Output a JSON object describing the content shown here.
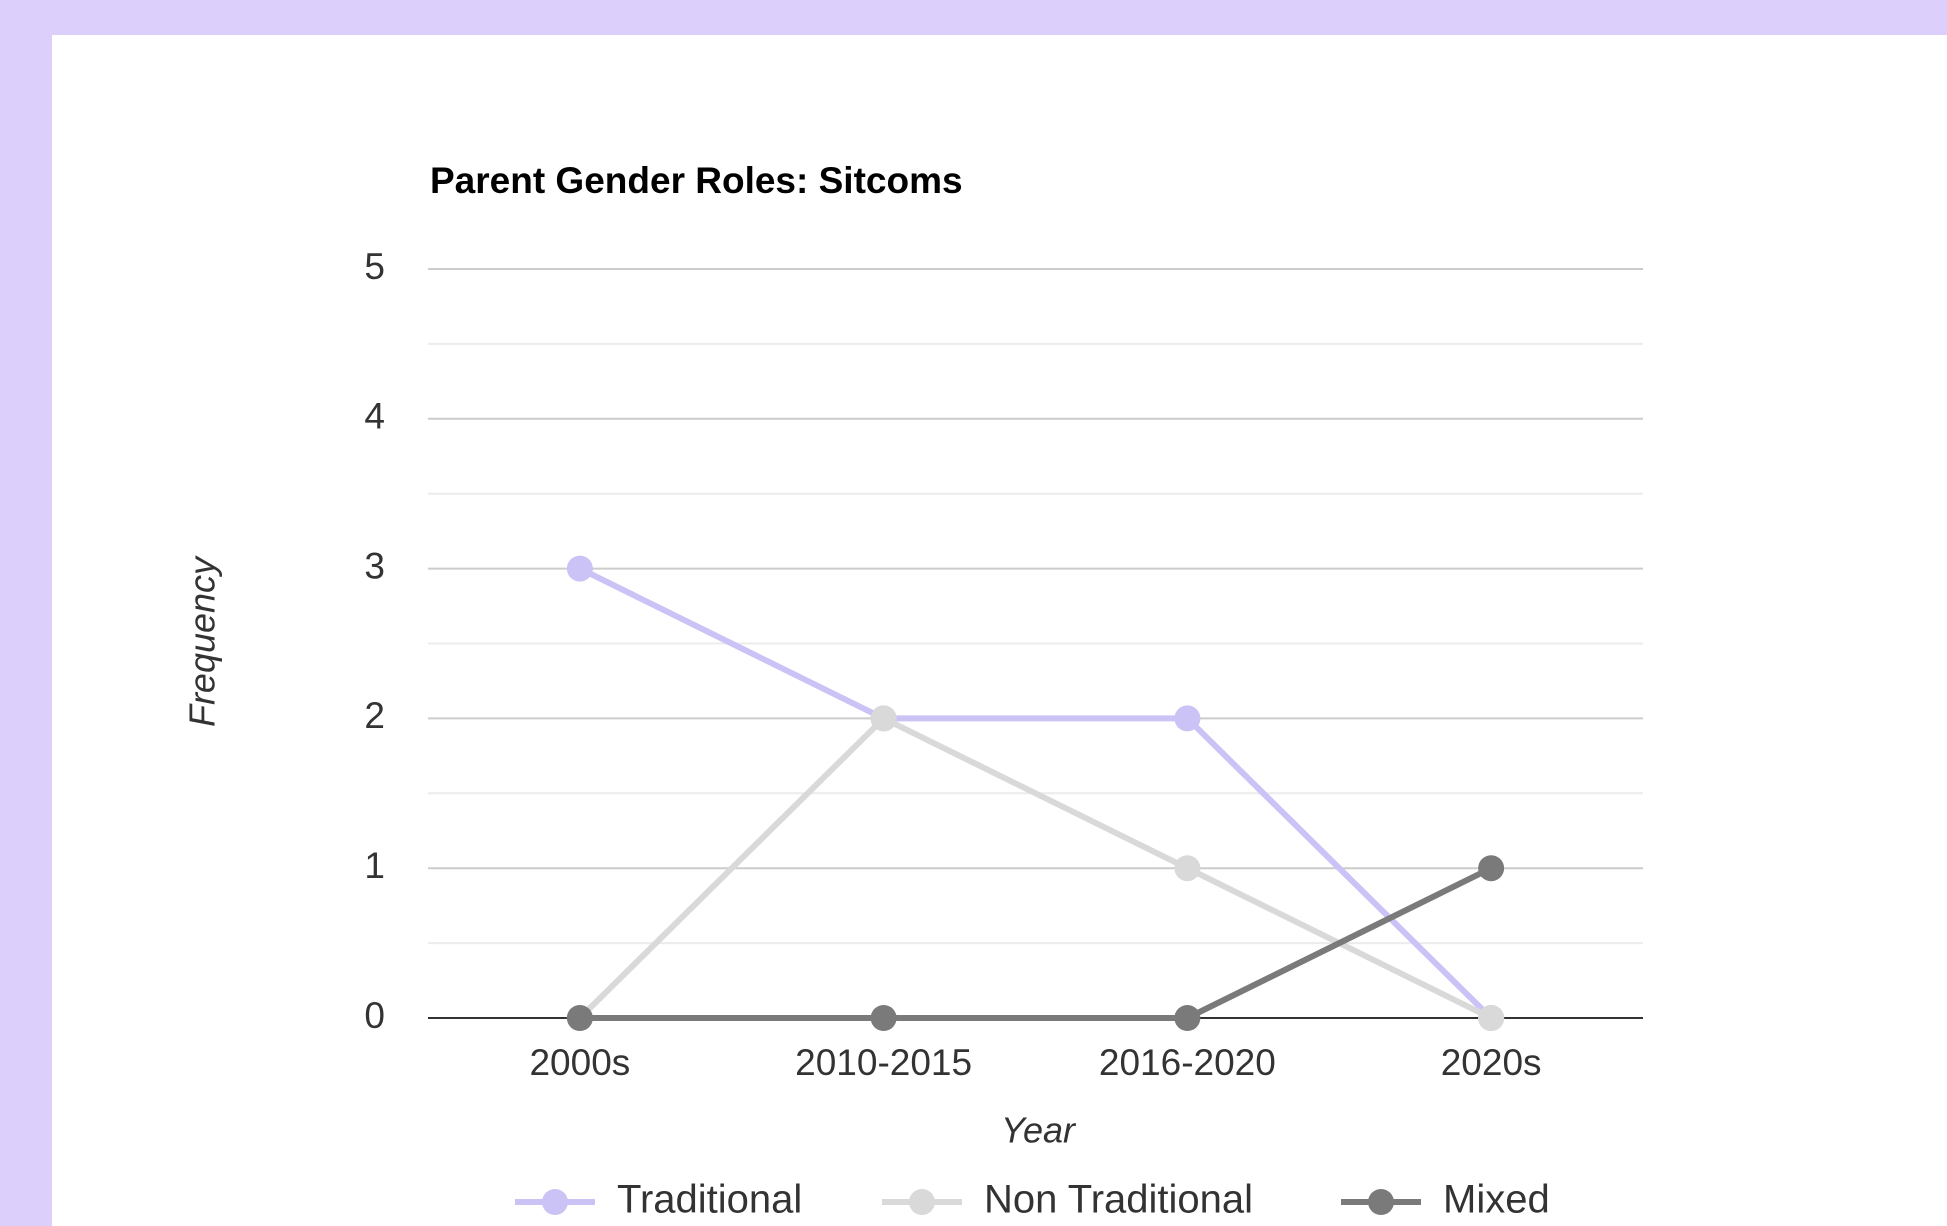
{
  "chart_data": {
    "type": "line",
    "title": "Parent Gender Roles: Sitcoms",
    "xlabel": "Year",
    "ylabel": "Frequency",
    "categories": [
      "2000s",
      "2010-2015",
      "2016-2020",
      "2020s"
    ],
    "series": [
      {
        "name": "Traditional",
        "color": "#cbc2f6",
        "values": [
          3,
          2,
          2,
          0
        ]
      },
      {
        "name": "Non Traditional",
        "color": "#d9d9d9",
        "values": [
          0,
          2,
          1,
          0
        ]
      },
      {
        "name": "Mixed",
        "color": "#7a7a7a",
        "values": [
          0,
          0,
          0,
          1
        ]
      }
    ],
    "ylim": [
      0,
      5
    ],
    "yticks": [
      0,
      1,
      2,
      3,
      4,
      5
    ],
    "grid": true,
    "legend": "bottom"
  }
}
